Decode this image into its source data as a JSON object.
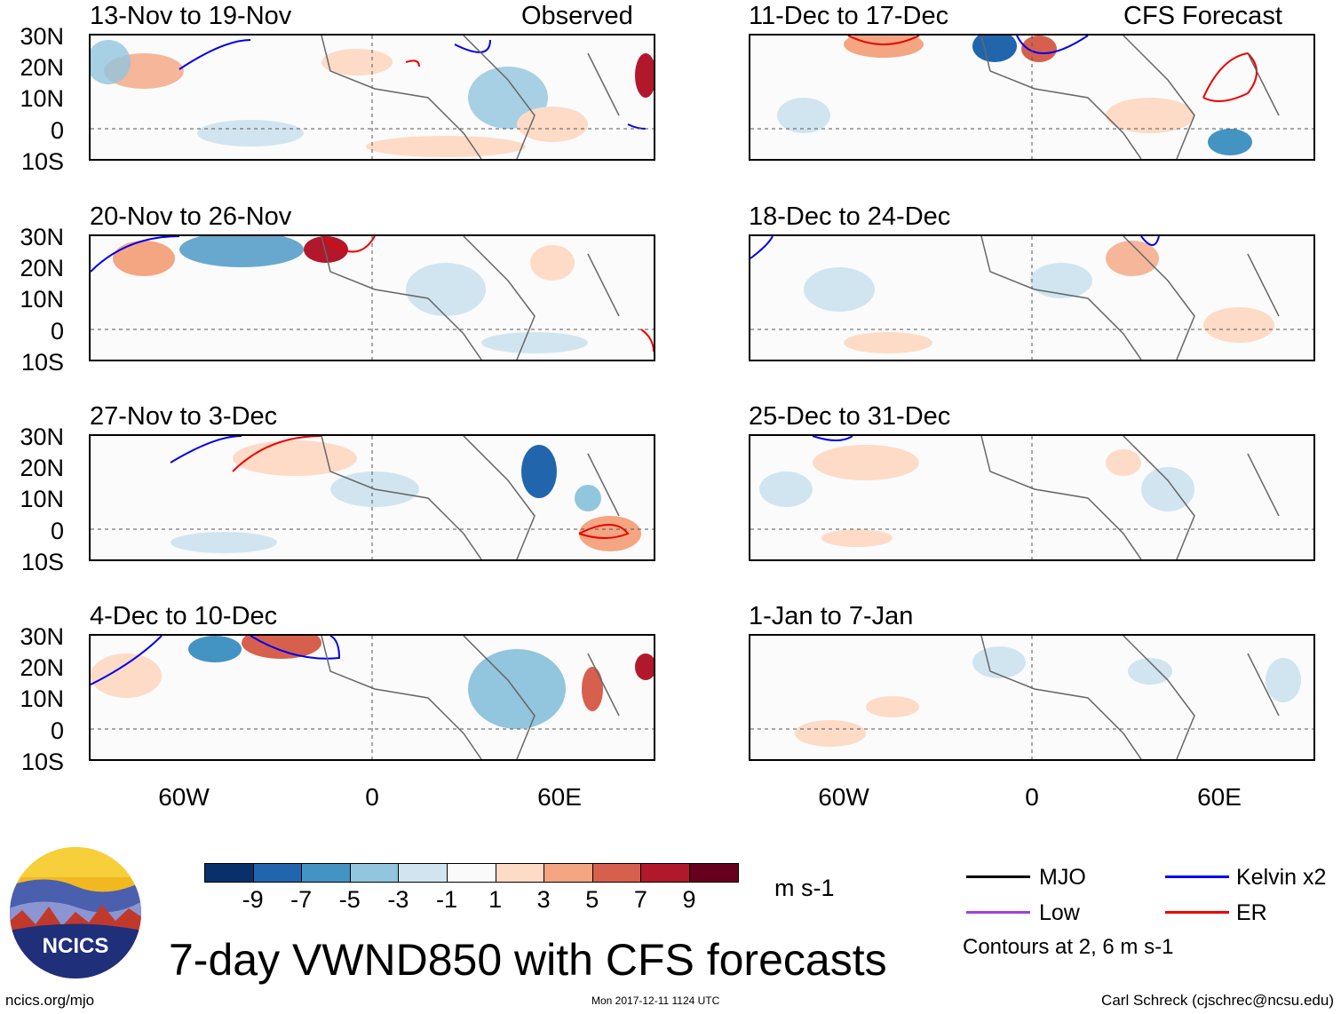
{
  "headers": {
    "observed": "Observed",
    "forecast": "CFS Forecast"
  },
  "panels": {
    "p0": {
      "title": "13-Nov to 19-Nov"
    },
    "p1": {
      "title": "20-Nov to 26-Nov"
    },
    "p2": {
      "title": "27-Nov to 3-Dec"
    },
    "p3": {
      "title": "4-Dec to 10-Dec"
    },
    "p4": {
      "title": "11-Dec to 17-Dec"
    },
    "p5": {
      "title": "18-Dec to 24-Dec"
    },
    "p6": {
      "title": "25-Dec to 31-Dec"
    },
    "p7": {
      "title": "1-Jan to 7-Jan"
    }
  },
  "lat_labels": [
    "30N",
    "20N",
    "10N",
    "0",
    "10S"
  ],
  "lon_labels": [
    "60W",
    "0",
    "60E"
  ],
  "colorbar": {
    "ticks": [
      "-9",
      "-7",
      "-5",
      "-3",
      "-1",
      "1",
      "3",
      "5",
      "7",
      "9"
    ],
    "colors": [
      "#08306b",
      "#2166ac",
      "#4393c3",
      "#92c5de",
      "#d1e5f0",
      "#fafafa",
      "#fddbc7",
      "#f4a582",
      "#d6604d",
      "#b2182b",
      "#67001f"
    ],
    "units": "m s-1"
  },
  "legend": {
    "mjo": {
      "label": "MJO",
      "color": "#000000"
    },
    "kelvin": {
      "label": "Kelvin x2",
      "color": "#0000ee"
    },
    "low": {
      "label": "Low",
      "color": "#a040e0"
    },
    "er": {
      "label": "ER",
      "color": "#ee0000"
    },
    "contours": "Contours at 2, 6 m s-1"
  },
  "logo": {
    "text": "NCICS"
  },
  "title": "7-day VWND850 with CFS forecasts",
  "footer": {
    "left": "ncics.org/mjo",
    "middle": "Mon 2017-12-11 1124 UTC",
    "right": "Carl Schreck (cjschrec@ncsu.edu)"
  }
}
